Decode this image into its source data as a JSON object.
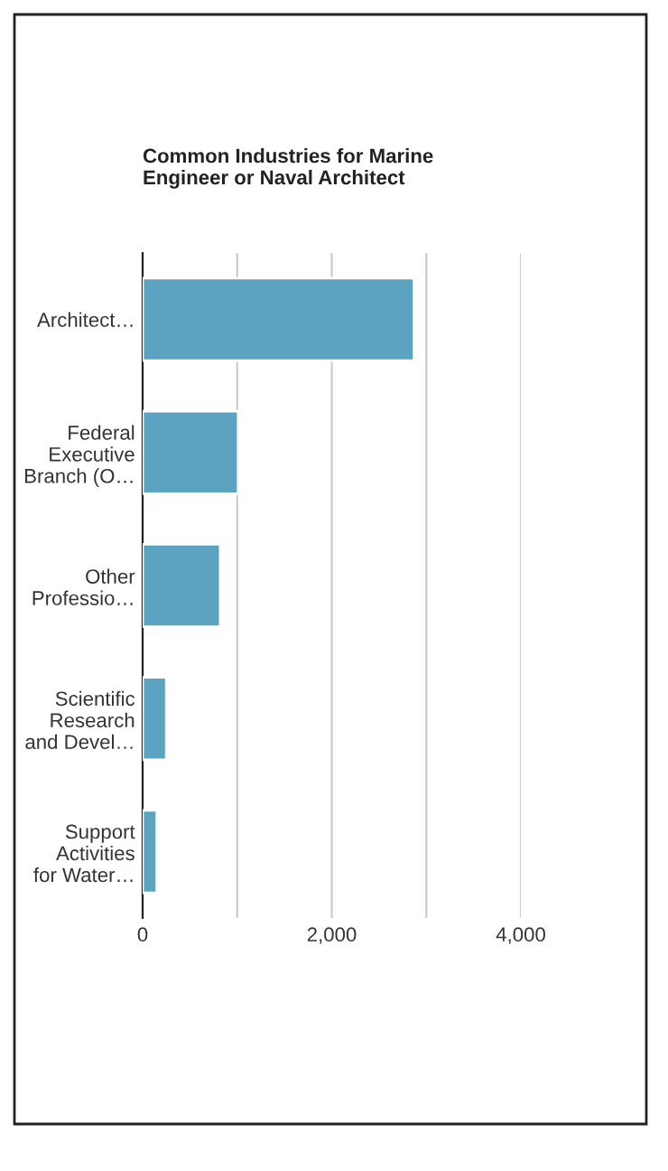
{
  "chart_data": {
    "type": "bar",
    "orientation": "horizontal",
    "title": "Common Industries for Marine\nEngineer or Naval Architect",
    "categories": [
      "Architect…",
      "Federal\nExecutive\nBranch (O…",
      "Other\nProfessio…",
      "Scientific\nResearch\nand Devel…",
      "Support\nActivities\nfor Water…"
    ],
    "values": [
      2870,
      1010,
      820,
      250,
      150
    ],
    "color": "#5ba3c0",
    "xlim": [
      0,
      4000
    ],
    "xticks": [
      0,
      {
        "value": 1000,
        "label": null
      },
      {
        "value": 2000,
        "label": "2,000"
      },
      {
        "value": 3000,
        "label": null
      },
      {
        "value": 4000,
        "label": "4,000"
      }
    ],
    "grid": "x",
    "legend": false
  }
}
